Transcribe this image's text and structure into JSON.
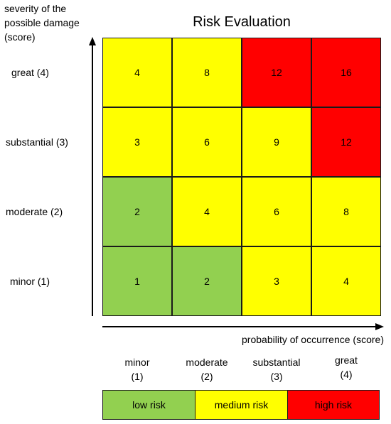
{
  "chart_data": {
    "type": "heatmap",
    "title": "Risk Evaluation",
    "ylabel": "severity of the possible damage (score)",
    "xlabel": "probability of occurrence (score)",
    "y_categories": [
      "great (4)",
      "substantial (3)",
      "moderate (2)",
      "minor (1)"
    ],
    "x_categories": [
      "minor (1)",
      "moderate (2)",
      "substantial (3)",
      "great (4)"
    ],
    "x_category_lines": [
      [
        "minor",
        "(1)"
      ],
      [
        "moderate",
        "(2)"
      ],
      [
        "substantial",
        "(3)"
      ],
      [
        "great",
        "(4)"
      ]
    ],
    "values": [
      [
        4,
        8,
        12,
        16
      ],
      [
        3,
        6,
        9,
        12
      ],
      [
        2,
        4,
        6,
        8
      ],
      [
        1,
        2,
        3,
        4
      ]
    ],
    "risk_levels": [
      [
        "medium",
        "medium",
        "high",
        "high"
      ],
      [
        "medium",
        "medium",
        "medium",
        "high"
      ],
      [
        "low",
        "medium",
        "medium",
        "medium"
      ],
      [
        "low",
        "low",
        "medium",
        "medium"
      ]
    ],
    "legend": [
      {
        "level": "low",
        "label": "low risk",
        "color": "#92d050"
      },
      {
        "level": "medium",
        "label": "medium risk",
        "color": "#ffff00"
      },
      {
        "level": "high",
        "label": "high risk",
        "color": "#ff0000"
      }
    ]
  }
}
